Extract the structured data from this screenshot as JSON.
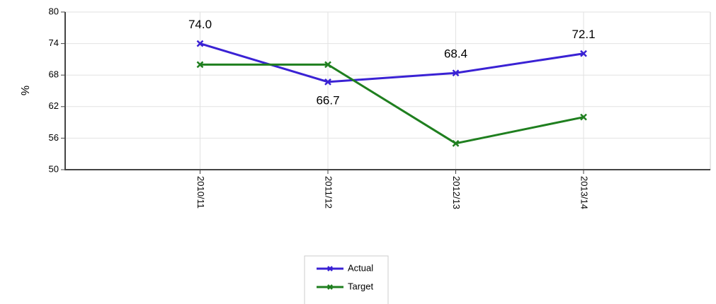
{
  "chart_data": {
    "type": "line",
    "y_label": "%",
    "categories": [
      "2010/11",
      "2011/12",
      "2012/13",
      "2013/14"
    ],
    "series": [
      {
        "name": "Actual",
        "color": "#3a22d4",
        "values": [
          74.0,
          66.7,
          68.4,
          72.1
        ],
        "value_labels": [
          "74.0",
          "66.7",
          "68.4",
          "72.1"
        ]
      },
      {
        "name": "Target",
        "color": "#1f7f1f",
        "values": [
          70,
          70,
          55,
          60
        ]
      }
    ],
    "ylim": [
      50,
      80
    ],
    "yticks": [
      50,
      56,
      62,
      68,
      74,
      80
    ],
    "grid": true,
    "legend": "bottom"
  }
}
